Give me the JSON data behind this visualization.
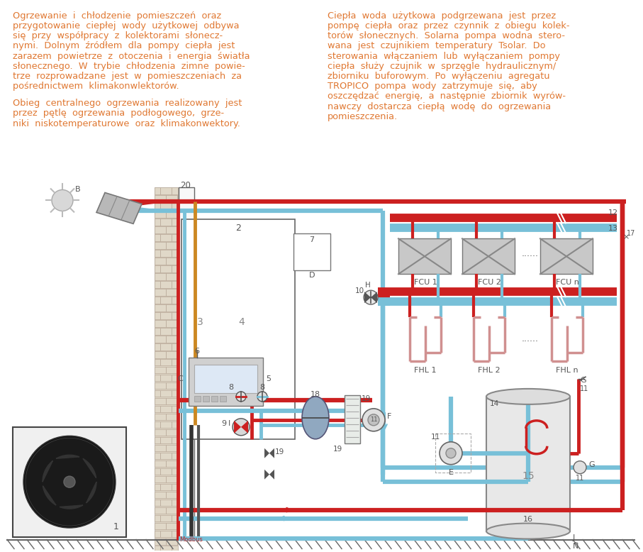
{
  "bg": "#ffffff",
  "orange": "#e07832",
  "red": "#cc2020",
  "blue": "#78c0d8",
  "dgray": "#444444",
  "mgray": "#888888",
  "lgray": "#cccccc",
  "brick_f": "#e0d8c8",
  "brick_e": "#b8a898",
  "figsize": [
    9.07,
    7.78
  ],
  "dpi": 100,
  "p1": [
    "Ogrzewanie  i  chłodzenie  pomieszczeń  oraz",
    "przygotowanie  ciepłej  wody  użytkowej  odbywa",
    "się  przy  współpracy  z  kolektorami  słonecz-",
    "nymi.  Dolnym  źródłem  dla  pompy  ciepła  jest",
    "zarazem  powietrze  z  otoczenia  i  energia  światła",
    "słonecznego.  W  trybie  chłodzenia  zimne  powie-",
    "trze  rozprowadzane  jest  w  pomieszczeniach  za",
    "pośrednictwem  klimakonwlektorów."
  ],
  "p2": [
    "Obieg  centralnego  ogrzewania  realizowany  jest",
    "przez  pętlę  ogrzewania  podłogowego,  grze-",
    "niki  niskotemperaturowe  oraz  klimakonwektory."
  ],
  "p3": [
    "Ciepła  woda  użytkowa  podgrzewana  jest  przez",
    "pompę  ciepła  oraz  przez  czynnik  z  obiegu  kolek-",
    "torów  słonecznych.  Solarna  pompa  wodna  stero-",
    "wana  jest  czujnikiem  temperatury  Tsolar.  Do",
    "sterowania  włączaniem  lub  wyłączaniem  pompy",
    "ciepła  służy  czujnik  w  sprzęgle  hydraulicznym/",
    "zbiorniku  buforowym.  Po  wyłączeniu  agregatu",
    "TROPICO  pompa  wody  zatrzymuje  się,  aby",
    "oszczędzać  energię,  a  następnie  zbiornik  wyrów-",
    "nawczy  dostarcza  ciepłą  wodę  do  ogrzewania",
    "pomieszczenia."
  ]
}
